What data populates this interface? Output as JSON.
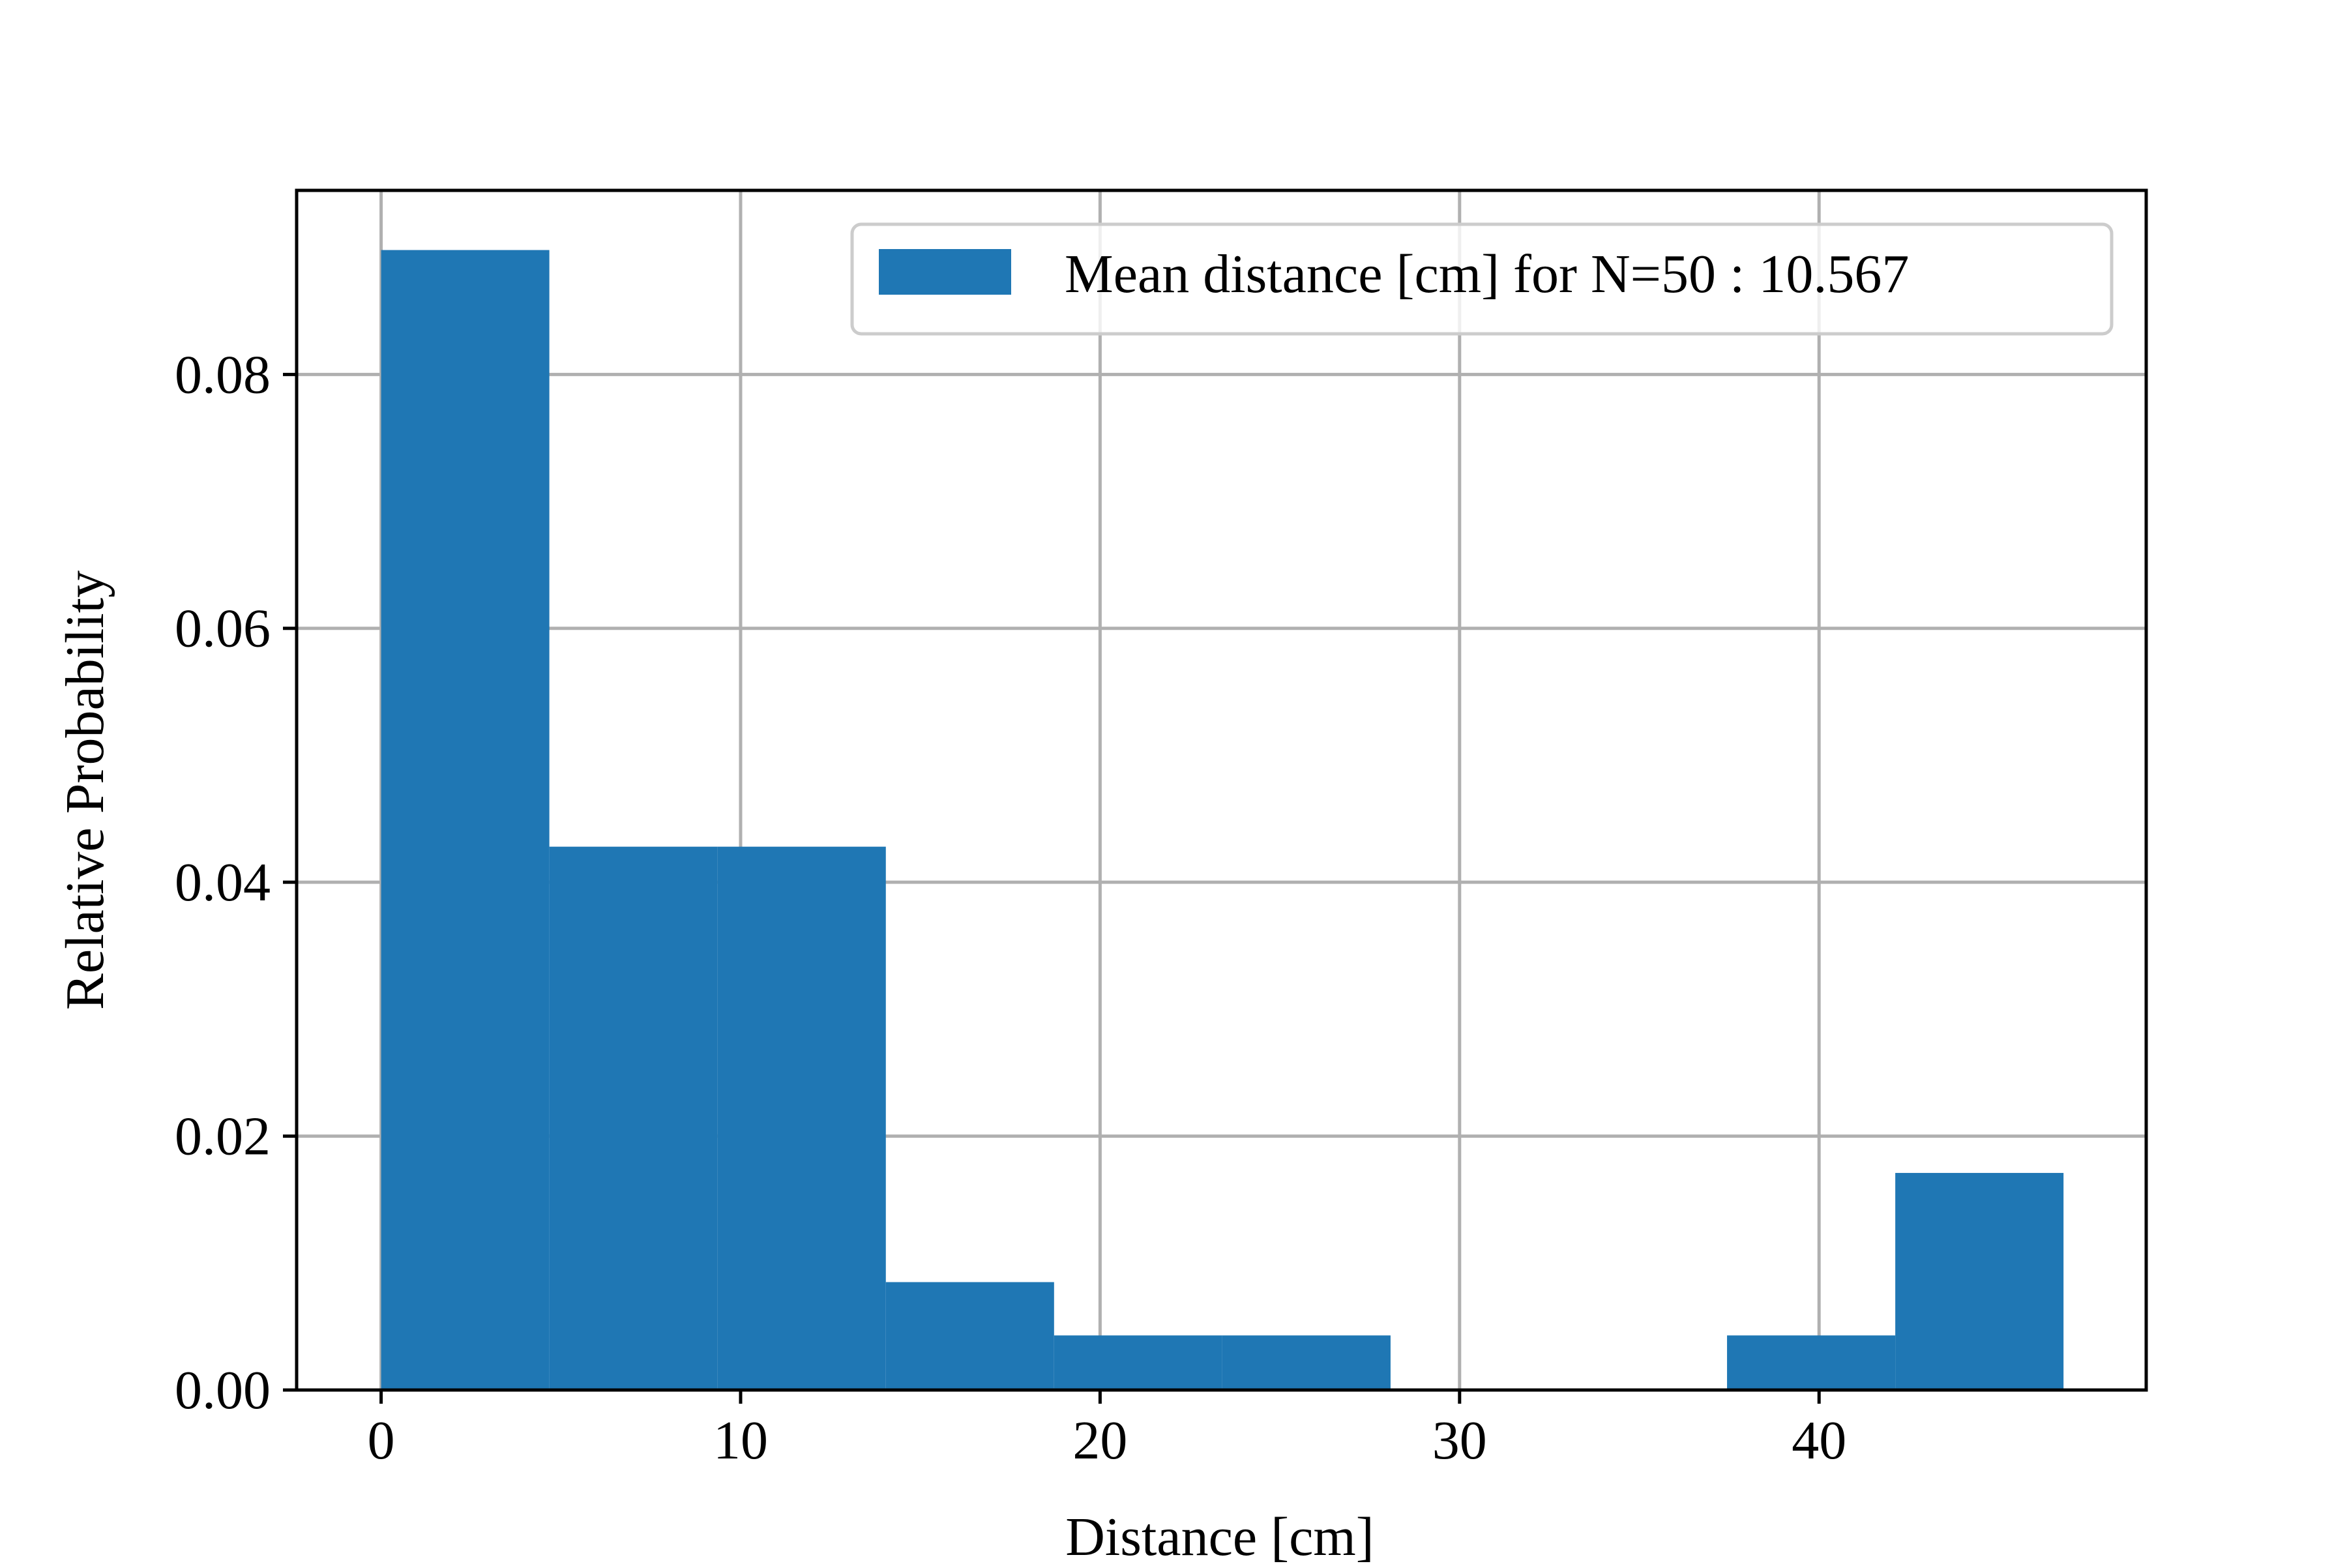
{
  "chart_data": {
    "type": "bar",
    "subtype": "histogram",
    "title": "",
    "xlabel": "Distance [cm]",
    "ylabel": "Relative Probability",
    "xlim": [
      -2.35,
      49.1
    ],
    "ylim": [
      0,
      0.0945
    ],
    "x_ticks": [
      0,
      10,
      20,
      30,
      40
    ],
    "x_tick_labels": [
      "0",
      "10",
      "20",
      "30",
      "40"
    ],
    "y_ticks": [
      0.0,
      0.02,
      0.04,
      0.06,
      0.08
    ],
    "y_tick_labels": [
      "0.00",
      "0.02",
      "0.04",
      "0.06",
      "0.08"
    ],
    "grid": true,
    "legend": {
      "location": "top-right",
      "entries": [
        "Mean distance [cm] for N=50 : 10.567"
      ]
    },
    "bar_color": "#1f77b4",
    "grid_color": "#b0b0b0",
    "bins": [
      {
        "x0": 0.0,
        "x1": 4.68,
        "value": 0.0898
      },
      {
        "x0": 4.68,
        "x1": 9.36,
        "value": 0.0428
      },
      {
        "x0": 9.36,
        "x1": 14.04,
        "value": 0.0428
      },
      {
        "x0": 14.04,
        "x1": 18.72,
        "value": 0.0085
      },
      {
        "x0": 18.72,
        "x1": 23.4,
        "value": 0.0043
      },
      {
        "x0": 23.4,
        "x1": 28.08,
        "value": 0.0043
      },
      {
        "x0": 28.08,
        "x1": 32.76,
        "value": 0.0
      },
      {
        "x0": 32.76,
        "x1": 37.44,
        "value": 0.0
      },
      {
        "x0": 37.44,
        "x1": 42.12,
        "value": 0.0043
      },
      {
        "x0": 42.12,
        "x1": 46.8,
        "value": 0.0171
      }
    ]
  }
}
